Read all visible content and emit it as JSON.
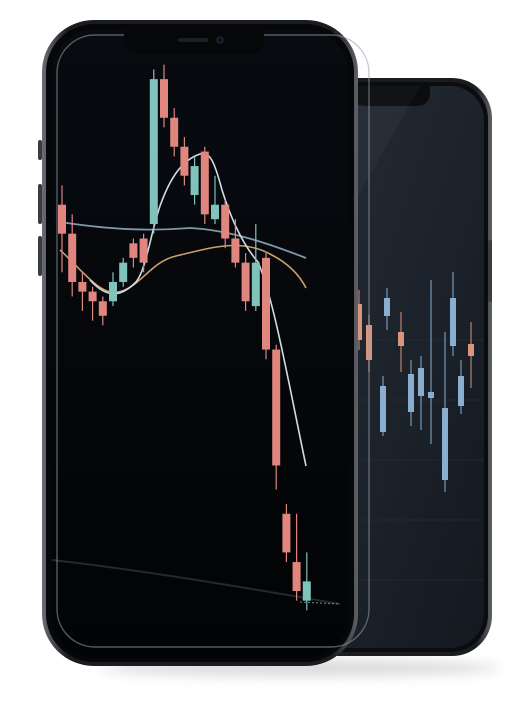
{
  "scene": {
    "description_free": true,
    "background": "#ffffff"
  },
  "front_phone": {
    "frame_color": "#1a1b1f",
    "screen_color": "#05070b",
    "bull_color": "#7fc3bb",
    "bear_color": "#e0867f",
    "ma_light_color": "#cfdde6",
    "ma_mid_color": "#7d9aa6",
    "ma_orange_color": "#c9a06a",
    "candles": [
      {
        "t": 0,
        "o": 64,
        "c": 58,
        "h": 68,
        "l": 50
      },
      {
        "t": 1,
        "o": 58,
        "c": 48,
        "h": 62,
        "l": 45
      },
      {
        "t": 2,
        "o": 48,
        "c": 46,
        "h": 50,
        "l": 42
      },
      {
        "t": 3,
        "o": 46,
        "c": 44,
        "h": 47,
        "l": 40
      },
      {
        "t": 4,
        "o": 44,
        "c": 41,
        "h": 45,
        "l": 39
      },
      {
        "t": 5,
        "o": 44,
        "c": 48,
        "h": 50,
        "l": 43
      },
      {
        "t": 6,
        "o": 48,
        "c": 52,
        "h": 53,
        "l": 47
      },
      {
        "t": 7,
        "o": 56,
        "c": 53,
        "h": 57,
        "l": 51
      },
      {
        "t": 8,
        "o": 57,
        "c": 52,
        "h": 58,
        "l": 50
      },
      {
        "t": 9,
        "o": 60,
        "c": 90,
        "h": 92,
        "l": 58
      },
      {
        "t": 10,
        "o": 90,
        "c": 82,
        "h": 93,
        "l": 80
      },
      {
        "t": 11,
        "o": 82,
        "c": 76,
        "h": 84,
        "l": 74
      },
      {
        "t": 12,
        "o": 76,
        "c": 70,
        "h": 78,
        "l": 68
      },
      {
        "t": 13,
        "o": 66,
        "c": 72,
        "h": 74,
        "l": 64
      },
      {
        "t": 14,
        "o": 75,
        "c": 62,
        "h": 76,
        "l": 60
      },
      {
        "t": 15,
        "o": 61,
        "c": 64,
        "h": 70,
        "l": 60
      },
      {
        "t": 16,
        "o": 64,
        "c": 57,
        "h": 65,
        "l": 55
      },
      {
        "t": 17,
        "o": 57,
        "c": 52,
        "h": 61,
        "l": 51
      },
      {
        "t": 18,
        "o": 52,
        "c": 44,
        "h": 54,
        "l": 42
      },
      {
        "t": 19,
        "o": 43,
        "c": 52,
        "h": 60,
        "l": 42
      },
      {
        "t": 20,
        "o": 53,
        "c": 34,
        "h": 54,
        "l": 32
      },
      {
        "t": 21,
        "o": 34,
        "c": 10,
        "h": 35,
        "l": 5
      },
      {
        "t": 22,
        "o": 0,
        "c": -8,
        "h": 2,
        "l": -10
      },
      {
        "t": 23,
        "o": -10,
        "c": -16,
        "h": 0,
        "l": -18
      },
      {
        "t": 24,
        "o": -18,
        "c": -14,
        "h": -8,
        "l": -20
      }
    ]
  },
  "back_phone": {
    "frame_color": "#16181d",
    "screen_color": "#1c222b",
    "bull_color": "#8aaed0",
    "bear_color": "#d9957d"
  }
}
